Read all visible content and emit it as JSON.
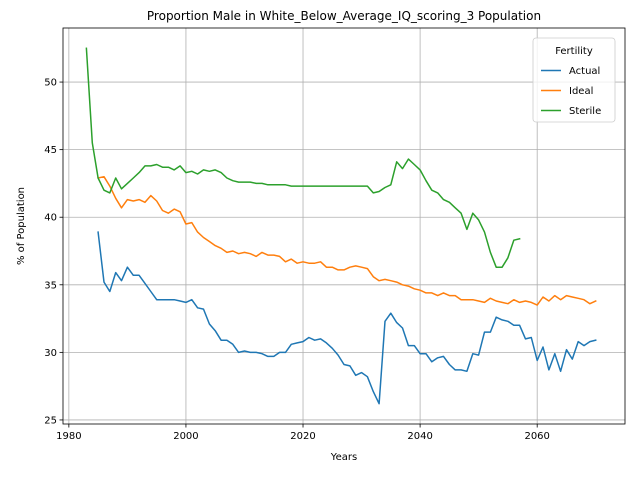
{
  "chart_data": {
    "type": "line",
    "title": "Proportion Male in White_Below_Average_IQ_scoring_3 Population",
    "xlabel": "Years",
    "ylabel": "% of Population",
    "xlim": [
      1979,
      2075
    ],
    "ylim": [
      24.7,
      54
    ],
    "xticks": [
      1980,
      2000,
      2020,
      2040,
      2060
    ],
    "yticks": [
      25,
      30,
      35,
      40,
      45,
      50
    ],
    "grid": true,
    "legend": {
      "title": "Fertility",
      "position": "top-right"
    },
    "series": [
      {
        "name": "Actual",
        "color": "#1f77b4",
        "x": [
          1985,
          1986,
          1987,
          1988,
          1989,
          1990,
          1991,
          1992,
          1993,
          1994,
          1995,
          1996,
          1997,
          1998,
          1999,
          2000,
          2001,
          2002,
          2003,
          2004,
          2005,
          2006,
          2007,
          2008,
          2009,
          2010,
          2011,
          2012,
          2013,
          2014,
          2015,
          2016,
          2017,
          2018,
          2019,
          2020,
          2021,
          2022,
          2023,
          2024,
          2025,
          2026,
          2027,
          2028,
          2029,
          2030,
          2031,
          2032,
          2033,
          2034,
          2035,
          2036,
          2037,
          2038,
          2039,
          2040,
          2041,
          2042,
          2043,
          2044,
          2045,
          2046,
          2047,
          2048,
          2049,
          2050,
          2051,
          2052,
          2053,
          2054,
          2055,
          2056,
          2057,
          2058,
          2059,
          2060,
          2061,
          2062,
          2063,
          2064,
          2065,
          2066,
          2067,
          2068,
          2069,
          2070
        ],
        "y": [
          38.9,
          35.2,
          34.5,
          35.9,
          35.3,
          36.3,
          35.7,
          35.7,
          35.1,
          34.5,
          33.9,
          33.9,
          33.9,
          33.9,
          33.8,
          33.7,
          33.9,
          33.3,
          33.2,
          32.1,
          31.6,
          30.9,
          30.9,
          30.6,
          30.0,
          30.1,
          30.0,
          30.0,
          29.9,
          29.7,
          29.7,
          30.0,
          30.0,
          30.6,
          30.7,
          30.8,
          31.1,
          30.9,
          31.0,
          30.7,
          30.3,
          29.8,
          29.1,
          29.0,
          28.3,
          28.5,
          28.2,
          27.1,
          26.2,
          32.3,
          32.9,
          32.2,
          31.8,
          30.5,
          30.5,
          29.9,
          29.9,
          29.3,
          29.6,
          29.7,
          29.1,
          28.7,
          28.7,
          28.6,
          29.9,
          29.8,
          31.5,
          31.5,
          32.6,
          32.4,
          32.3,
          32.0,
          32.0,
          31.0,
          31.1,
          29.4,
          30.4,
          28.7,
          29.9,
          28.6,
          30.2,
          29.5,
          30.8,
          30.5,
          30.8,
          30.9
        ]
      },
      {
        "name": "Ideal",
        "color": "#ff7f0e",
        "x": [
          1985,
          1986,
          1987,
          1988,
          1989,
          1990,
          1991,
          1992,
          1993,
          1994,
          1995,
          1996,
          1997,
          1998,
          1999,
          2000,
          2001,
          2002,
          2003,
          2004,
          2005,
          2006,
          2007,
          2008,
          2009,
          2010,
          2011,
          2012,
          2013,
          2014,
          2015,
          2016,
          2017,
          2018,
          2019,
          2020,
          2021,
          2022,
          2023,
          2024,
          2025,
          2026,
          2027,
          2028,
          2029,
          2030,
          2031,
          2032,
          2033,
          2034,
          2035,
          2036,
          2037,
          2038,
          2039,
          2040,
          2041,
          2042,
          2043,
          2044,
          2045,
          2046,
          2047,
          2048,
          2049,
          2050,
          2051,
          2052,
          2053,
          2054,
          2055,
          2056,
          2057,
          2058,
          2059,
          2060,
          2061,
          2062,
          2063,
          2064,
          2065,
          2066,
          2067,
          2068,
          2069,
          2070
        ],
        "y": [
          42.9,
          43.0,
          42.3,
          41.4,
          40.7,
          41.3,
          41.2,
          41.3,
          41.1,
          41.6,
          41.2,
          40.5,
          40.3,
          40.6,
          40.4,
          39.5,
          39.6,
          38.9,
          38.5,
          38.2,
          37.9,
          37.7,
          37.4,
          37.5,
          37.3,
          37.4,
          37.3,
          37.1,
          37.4,
          37.2,
          37.2,
          37.1,
          36.7,
          36.9,
          36.6,
          36.7,
          36.6,
          36.6,
          36.7,
          36.3,
          36.3,
          36.1,
          36.1,
          36.3,
          36.4,
          36.3,
          36.2,
          35.6,
          35.3,
          35.4,
          35.3,
          35.2,
          35.0,
          34.9,
          34.7,
          34.6,
          34.4,
          34.4,
          34.2,
          34.4,
          34.2,
          34.2,
          33.9,
          33.9,
          33.9,
          33.8,
          33.7,
          34.0,
          33.8,
          33.7,
          33.6,
          33.9,
          33.7,
          33.8,
          33.7,
          33.5,
          34.1,
          33.8,
          34.2,
          33.9,
          34.2,
          34.1,
          34.0,
          33.9,
          33.6,
          33.8
        ]
      },
      {
        "name": "Sterile",
        "color": "#2ca02c",
        "x": [
          1983,
          1984,
          1985,
          1986,
          1987,
          1988,
          1989,
          1990,
          1991,
          1992,
          1993,
          1994,
          1995,
          1996,
          1997,
          1998,
          1999,
          2000,
          2001,
          2002,
          2003,
          2004,
          2005,
          2006,
          2007,
          2008,
          2009,
          2010,
          2011,
          2012,
          2013,
          2014,
          2015,
          2016,
          2017,
          2018,
          2019,
          2020,
          2021,
          2022,
          2023,
          2024,
          2025,
          2026,
          2027,
          2028,
          2029,
          2030,
          2031,
          2032,
          2033,
          2034,
          2035,
          2036,
          2037,
          2038,
          2039,
          2040,
          2041,
          2042,
          2043,
          2044,
          2045,
          2046,
          2047,
          2048,
          2049,
          2050,
          2051,
          2052,
          2053,
          2054,
          2055,
          2056,
          2057
        ],
        "y": [
          52.5,
          45.5,
          42.9,
          42.0,
          41.8,
          42.9,
          42.1,
          42.5,
          42.9,
          43.3,
          43.8,
          43.8,
          43.9,
          43.7,
          43.7,
          43.5,
          43.8,
          43.3,
          43.4,
          43.2,
          43.5,
          43.4,
          43.5,
          43.3,
          42.9,
          42.7,
          42.6,
          42.6,
          42.6,
          42.5,
          42.5,
          42.4,
          42.4,
          42.4,
          42.4,
          42.3,
          42.3,
          42.3,
          42.3,
          42.3,
          42.3,
          42.3,
          42.3,
          42.3,
          42.3,
          42.3,
          42.3,
          42.3,
          42.3,
          41.8,
          41.9,
          42.2,
          42.4,
          44.1,
          43.6,
          44.3,
          43.9,
          43.5,
          42.7,
          42.0,
          41.8,
          41.3,
          41.1,
          40.7,
          40.3,
          39.1,
          40.3,
          39.8,
          38.9,
          37.4,
          36.3,
          36.3,
          37.0,
          38.3,
          38.4
        ]
      }
    ]
  }
}
